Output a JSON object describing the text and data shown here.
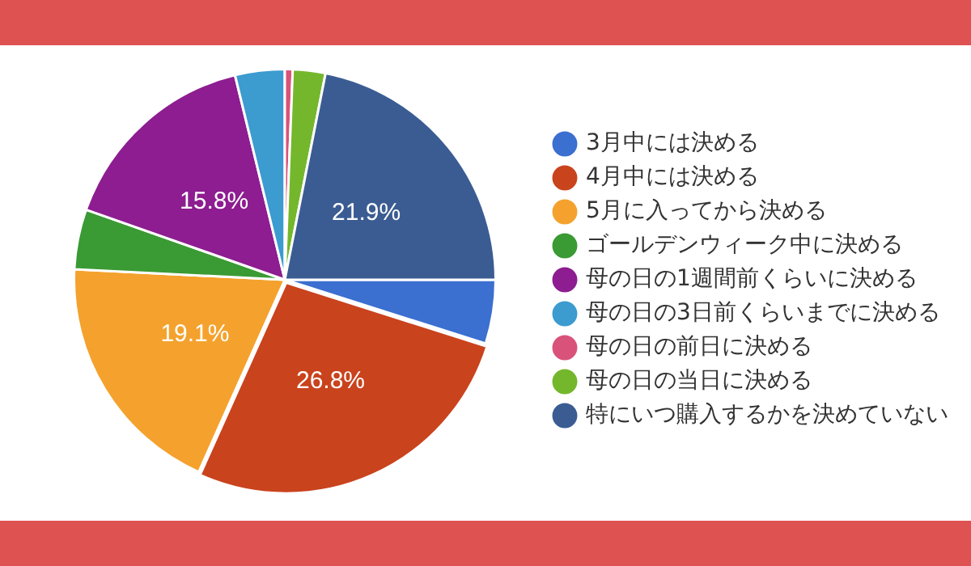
{
  "chart_data": {
    "type": "pie",
    "categories": [
      "3月中には決める",
      "4月中には決める",
      "5月に入ってから決める",
      "ゴールデンウィーク中に決める",
      "母の日の1週間前くらいに決める",
      "母の日の3日前くらいまでに決める",
      "母の日の前日に決める",
      "母の日の当日に決める",
      "特にいつ購入するかを決めていない"
    ],
    "values": [
      4.9,
      26.8,
      19.1,
      4.6,
      15.8,
      3.8,
      0.6,
      2.5,
      21.9
    ],
    "colors": [
      "#3b6fd0",
      "#c9431d",
      "#f4a22d",
      "#3a9a33",
      "#8d1d90",
      "#3c9bcf",
      "#d9527a",
      "#74b72c",
      "#3b5c93"
    ],
    "value_labels": [
      null,
      "26.8%",
      "19.1%",
      null,
      "15.8%",
      null,
      null,
      null,
      "21.9%"
    ],
    "legend": "right"
  }
}
